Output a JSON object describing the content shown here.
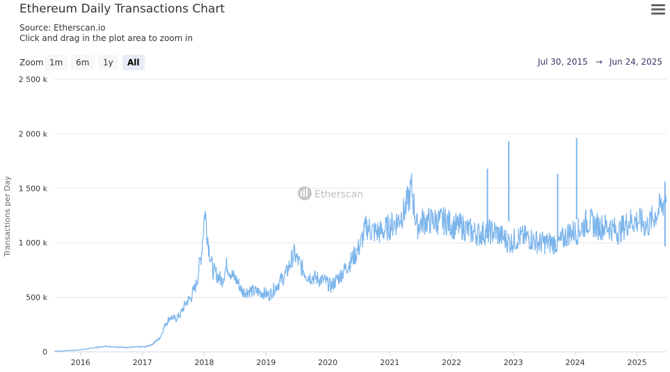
{
  "header": {
    "title": "Ethereum Daily Transactions Chart",
    "source": "Source: Etherscan.io",
    "hint": "Click and drag in the plot area to zoom in"
  },
  "zoom": {
    "label": "Zoom",
    "buttons": [
      "1m",
      "6m",
      "1y",
      "All"
    ],
    "active": "All"
  },
  "range": {
    "from": "Jul 30, 2015",
    "separator": "→",
    "to": "Jun 24, 2025"
  },
  "watermark": "Etherscan",
  "colors": {
    "series": "#7cb5ec",
    "grid": "#e6e6e6"
  },
  "chart_data": {
    "type": "line",
    "title": "Ethereum Daily Transactions Chart",
    "ylabel": "Transactions per Day",
    "xlabel": "",
    "xlim": [
      "2015-07-30",
      "2025-06-24"
    ],
    "ylim": [
      0,
      2500000
    ],
    "yticks": [
      "0",
      "500 k",
      "1 000 k",
      "1 500 k",
      "2 000 k",
      "2 500 k"
    ],
    "xticks": [
      "2016",
      "2017",
      "2018",
      "2019",
      "2020",
      "2021",
      "2022",
      "2023",
      "2024",
      "2025"
    ],
    "grid": true,
    "legend": "none",
    "series": [
      {
        "values": [
          [
            "2015-08-01",
            5000
          ],
          [
            "2015-10-01",
            10000
          ],
          [
            "2015-12-01",
            15000
          ],
          [
            "2016-02-01",
            25000
          ],
          [
            "2016-04-01",
            40000
          ],
          [
            "2016-06-01",
            50000
          ],
          [
            "2016-08-01",
            45000
          ],
          [
            "2016-10-01",
            40000
          ],
          [
            "2016-12-01",
            45000
          ],
          [
            "2017-01-15",
            45000
          ],
          [
            "2017-03-01",
            70000
          ],
          [
            "2017-04-15",
            130000
          ],
          [
            "2017-05-15",
            250000
          ],
          [
            "2017-06-15",
            320000
          ],
          [
            "2017-07-15",
            300000
          ],
          [
            "2017-08-15",
            350000
          ],
          [
            "2017-09-15",
            450000
          ],
          [
            "2017-10-15",
            500000
          ],
          [
            "2017-11-15",
            620000
          ],
          [
            "2017-12-15",
            900000
          ],
          [
            "2018-01-05",
            1300000
          ],
          [
            "2018-01-25",
            1000000
          ],
          [
            "2018-02-20",
            750000
          ],
          [
            "2018-03-20",
            700000
          ],
          [
            "2018-04-15",
            650000
          ],
          [
            "2018-05-15",
            800000
          ],
          [
            "2018-06-15",
            700000
          ],
          [
            "2018-07-15",
            650000
          ],
          [
            "2018-08-15",
            550000
          ],
          [
            "2018-10-01",
            560000
          ],
          [
            "2018-11-15",
            550000
          ],
          [
            "2018-12-15",
            540000
          ],
          [
            "2019-01-20",
            520000
          ],
          [
            "2019-03-01",
            600000
          ],
          [
            "2019-05-01",
            720000
          ],
          [
            "2019-06-15",
            900000
          ],
          [
            "2019-07-20",
            800000
          ],
          [
            "2019-09-01",
            700000
          ],
          [
            "2019-10-15",
            680000
          ],
          [
            "2019-12-15",
            650000
          ],
          [
            "2020-01-20",
            600000
          ],
          [
            "2020-03-15",
            700000
          ],
          [
            "2020-05-01",
            800000
          ],
          [
            "2020-06-15",
            900000
          ],
          [
            "2020-07-15",
            1000000
          ],
          [
            "2020-08-15",
            1150000
          ],
          [
            "2020-10-01",
            1100000
          ],
          [
            "2020-11-15",
            1100000
          ],
          [
            "2021-01-01",
            1150000
          ],
          [
            "2021-02-15",
            1200000
          ],
          [
            "2021-04-01",
            1300000
          ],
          [
            "2021-05-10",
            1500000
          ],
          [
            "2021-06-10",
            1150000
          ],
          [
            "2021-07-15",
            1200000
          ],
          [
            "2021-09-01",
            1200000
          ],
          [
            "2021-10-15",
            1200000
          ],
          [
            "2021-12-01",
            1200000
          ],
          [
            "2022-01-15",
            1150000
          ],
          [
            "2022-03-01",
            1150000
          ],
          [
            "2022-05-01",
            1100000
          ],
          [
            "2022-06-15",
            1080000
          ],
          [
            "2022-08-01",
            1100000
          ],
          [
            "2022-09-15",
            1100000
          ],
          [
            "2022-11-01",
            1050000
          ],
          [
            "2022-12-15",
            1000000
          ],
          [
            "2023-02-01",
            1050000
          ],
          [
            "2023-04-01",
            1050000
          ],
          [
            "2023-06-01",
            1000000
          ],
          [
            "2023-08-01",
            1000000
          ],
          [
            "2023-10-01",
            1000000
          ],
          [
            "2023-12-01",
            1100000
          ],
          [
            "2024-01-15",
            1100000
          ],
          [
            "2024-03-15",
            1200000
          ],
          [
            "2024-05-15",
            1150000
          ],
          [
            "2024-07-15",
            1150000
          ],
          [
            "2024-09-15",
            1100000
          ],
          [
            "2024-11-15",
            1200000
          ],
          [
            "2025-01-15",
            1200000
          ],
          [
            "2025-03-01",
            1150000
          ],
          [
            "2025-04-15",
            1250000
          ],
          [
            "2025-06-01",
            1350000
          ],
          [
            "2025-06-24",
            1450000
          ]
        ],
        "spikes": [
          [
            "2022-08-01",
            1680000
          ],
          [
            "2022-12-05",
            1930000
          ],
          [
            "2023-09-20",
            1630000
          ],
          [
            "2024-01-10",
            1960000
          ],
          [
            "2025-06-15",
            1560000
          ]
        ]
      }
    ]
  }
}
